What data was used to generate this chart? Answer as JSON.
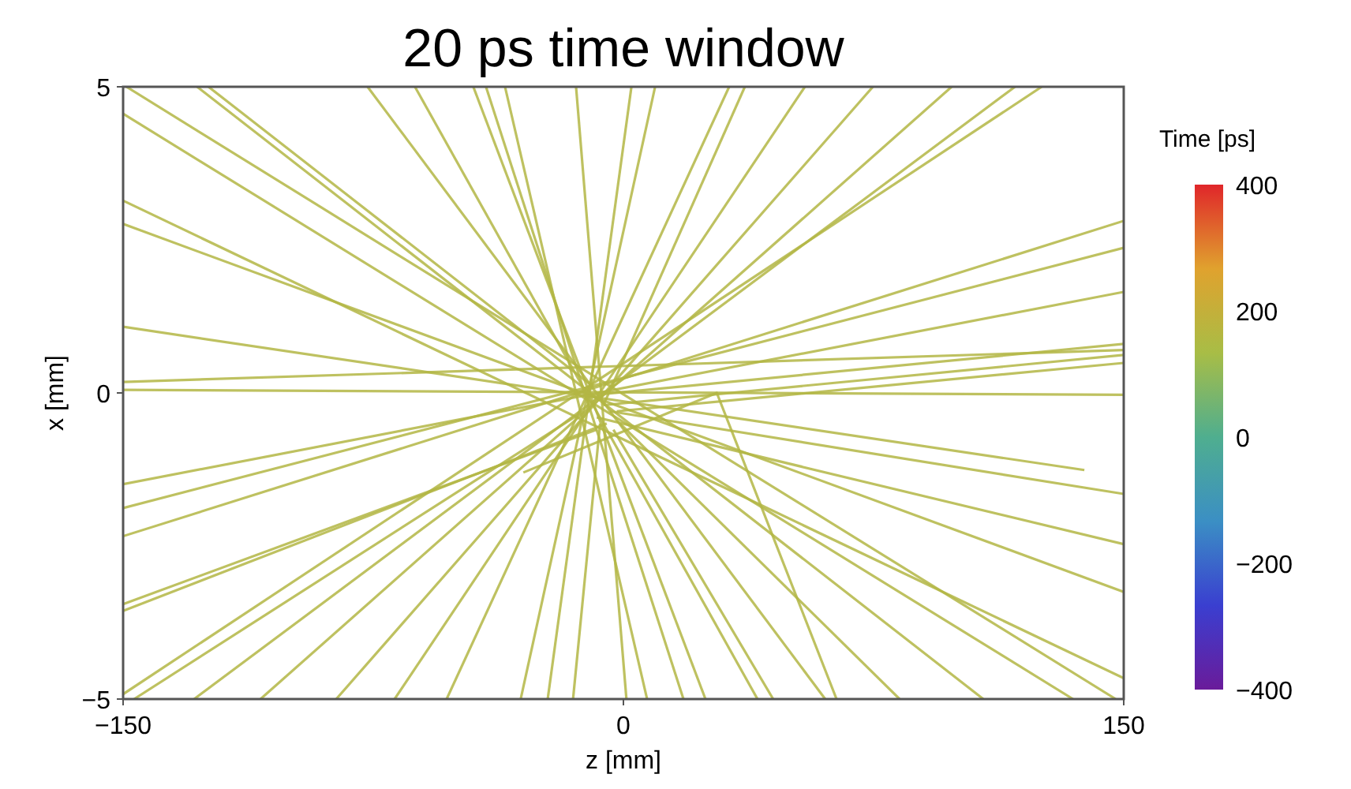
{
  "chart_data": {
    "type": "line",
    "title": "20 ps time window",
    "xlabel": "z [mm]",
    "ylabel": "x [mm]",
    "clabel": "Time [ps]",
    "xlim": [
      -150,
      150
    ],
    "ylim": [
      -5,
      5
    ],
    "xticks": [
      -150,
      0,
      150
    ],
    "yticks": [
      -5,
      0,
      5
    ],
    "clim": [
      -400,
      400
    ],
    "cticks": [
      -400,
      -200,
      0,
      200,
      400
    ],
    "series": [
      {
        "color": "#b3b644",
        "x": [
          -150,
          150
        ],
        "values": [
          -2.34,
          2.81
        ]
      },
      {
        "color": "#b3b644",
        "x": [
          -150,
          150
        ],
        "values": [
          -1.88,
          2.37
        ]
      },
      {
        "color": "#b3b644",
        "x": [
          -150,
          150
        ],
        "values": [
          -1.49,
          1.65
        ]
      },
      {
        "color": "#b3b644",
        "x": [
          -150,
          150
        ],
        "values": [
          0.05,
          -0.03
        ]
      },
      {
        "color": "#b3b644",
        "x": [
          -150,
          150
        ],
        "values": [
          0.18,
          0.7
        ]
      },
      {
        "color": "#b3b644",
        "x": [
          -150,
          138.2
        ],
        "values": [
          1.08,
          -1.26
        ]
      },
      {
        "color": "#b3b644",
        "x": [
          -150,
          134.8
        ],
        "values": [
          4.56,
          -5
        ]
      },
      {
        "color": "#b3b644",
        "x": [
          -150,
          150
        ],
        "values": [
          3.14,
          -4.66
        ]
      },
      {
        "color": "#b3b644",
        "x": [
          -150,
          150
        ],
        "values": [
          2.76,
          -3.25
        ]
      },
      {
        "color": "#b3b644",
        "x": [
          -150,
          125.4
        ],
        "values": [
          -4.92,
          5
        ]
      },
      {
        "color": "#b3b644",
        "x": [
          -149,
          147.6
        ],
        "values": [
          5,
          -5
        ]
      },
      {
        "color": "#b3b644",
        "x": [
          -127.8,
          107.9
        ],
        "values": [
          5,
          -5
        ]
      },
      {
        "color": "#b3b644",
        "x": [
          -76.7,
          60.5
        ],
        "values": [
          5,
          -5
        ]
      },
      {
        "color": "#b3b644",
        "x": [
          -62.5,
          40.2
        ],
        "values": [
          5,
          -5
        ]
      },
      {
        "color": "#b3b644",
        "x": [
          -45,
          24.6
        ],
        "values": [
          5,
          -5
        ]
      },
      {
        "color": "#b3b644",
        "x": [
          -41.2,
          18
        ],
        "values": [
          5,
          -5
        ]
      },
      {
        "color": "#b3b644",
        "x": [
          -35.5,
          7.1
        ],
        "values": [
          5,
          -5
        ]
      },
      {
        "color": "#b3b644",
        "x": [
          -14.2,
          0.9
        ],
        "values": [
          5,
          -5
        ]
      },
      {
        "color": "#b3b644",
        "x": [
          2.4,
          -22.7
        ],
        "values": [
          5,
          -5
        ]
      },
      {
        "color": "#b3b644",
        "x": [
          9.5,
          -30.8
        ],
        "values": [
          5,
          -5
        ]
      },
      {
        "color": "#b3b644",
        "x": [
          31.7,
          -53
        ],
        "values": [
          5,
          -5
        ]
      },
      {
        "color": "#b3b644",
        "x": [
          54.4,
          -68.6
        ],
        "values": [
          5,
          -5
        ]
      },
      {
        "color": "#b3b644",
        "x": [
          74.8,
          -86.1
        ],
        "values": [
          5,
          -5
        ]
      },
      {
        "color": "#b3b644",
        "x": [
          98.4,
          -108.8
        ],
        "values": [
          5,
          -5
        ]
      },
      {
        "color": "#b3b644",
        "x": [
          117.4,
          -128.7
        ],
        "values": [
          5,
          -5
        ]
      },
      {
        "color": "#b3b644",
        "x": [
          -12,
          150
        ],
        "values": [
          -0.05,
          0.8
        ]
      },
      {
        "color": "#b3b644",
        "x": [
          -6,
          150
        ],
        "values": [
          -0.2,
          0.62
        ]
      },
      {
        "color": "#b3b644",
        "x": [
          -2,
          150
        ],
        "values": [
          -0.3,
          0.49
        ]
      },
      {
        "color": "#b3b644",
        "x": [
          -8,
          150
        ],
        "values": [
          -0.4,
          -2.47
        ]
      },
      {
        "color": "#b3b644",
        "x": [
          -4,
          150
        ],
        "values": [
          -0.3,
          -1.65
        ]
      },
      {
        "color": "#b3b644",
        "x": [
          -9,
          -124.4
        ],
        "values": [
          0.1,
          5
        ]
      },
      {
        "color": "#b3b644",
        "x": [
          -6,
          36.4
        ],
        "values": [
          -0.2,
          5
        ]
      },
      {
        "color": "#b3b644",
        "x": [
          -8,
          -150
        ],
        "values": [
          -0.6,
          -3.45
        ]
      },
      {
        "color": "#b3b644",
        "x": [
          -5,
          -150
        ],
        "values": [
          -0.5,
          -3.56
        ]
      },
      {
        "color": "#b3b644",
        "x": [
          -12,
          -146.7
        ],
        "values": [
          -0.3,
          -5
        ]
      },
      {
        "color": "#b3b644",
        "x": [
          -7,
          -15.1
        ],
        "values": [
          -0.5,
          -5
        ]
      },
      {
        "color": "#b3b644",
        "x": [
          -3,
          44.9
        ],
        "values": [
          -0.6,
          -5
        ]
      },
      {
        "color": "#b3b644",
        "x": [
          -1,
          82.8
        ],
        "values": [
          -0.5,
          -5
        ]
      },
      {
        "color": "#b3b644",
        "x": [
          -30,
          28,
          63.9
        ],
        "values": [
          -1.3,
          0,
          -5
        ]
      }
    ]
  }
}
